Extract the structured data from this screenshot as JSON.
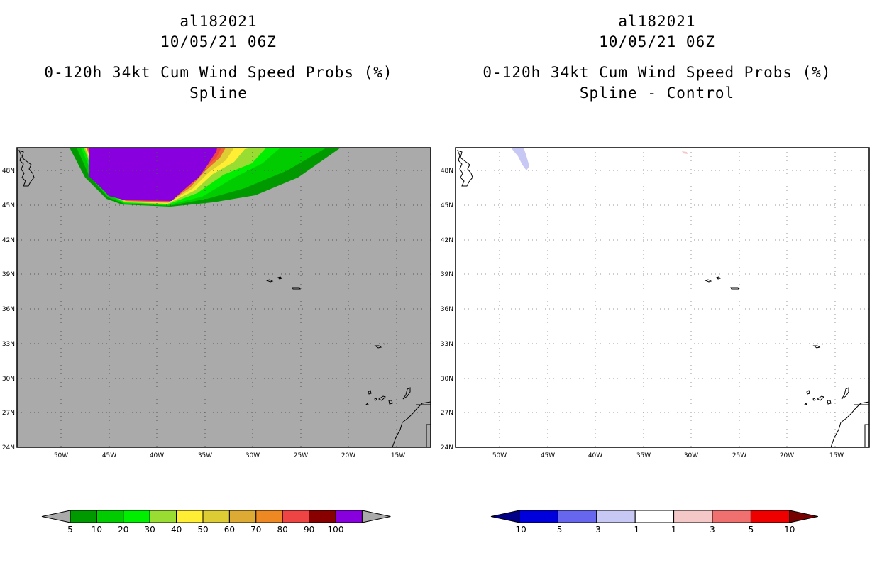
{
  "panels": [
    {
      "title_lines": [
        "al182021",
        "10/05/21 06Z",
        "0-120h 34kt Cum Wind Speed Probs (%)",
        "Spline"
      ],
      "background": "#aaaaaa",
      "colorbar": {
        "colors": [
          "#009900",
          "#00cc00",
          "#00ee00",
          "#99dd33",
          "#ffee33",
          "#ddcc33",
          "#ddaa33",
          "#ee8822",
          "#ee4444",
          "#880000",
          "#8800dd"
        ],
        "labels": [
          "5",
          "10",
          "20",
          "30",
          "40",
          "50",
          "60",
          "70",
          "80",
          "90",
          "100"
        ],
        "under_color": "#aaaaaa",
        "over_color": "#aaaaaa"
      }
    },
    {
      "title_lines": [
        "al182021",
        "10/05/21 06Z",
        "0-120h 34kt Cum Wind Speed Probs (%)",
        "Spline - Control"
      ],
      "background": "#ffffff",
      "colorbar": {
        "colors": [
          "#0000dd",
          "#6666ee",
          "#c8c8f5",
          "#ffffff",
          "#f5c8c8",
          "#f07070",
          "#ee0000"
        ],
        "labels": [
          "-10",
          "-5",
          "-3",
          "-1",
          "1",
          "3",
          "5",
          "10"
        ],
        "under_color": "#000088",
        "over_color": "#770000"
      }
    }
  ],
  "axes": {
    "lon_labels": [
      "50W",
      "45W",
      "40W",
      "35W",
      "30W",
      "25W",
      "20W",
      "15W"
    ],
    "lat_labels": [
      "48N",
      "45N",
      "42N",
      "39N",
      "36N",
      "33N",
      "30N",
      "27N",
      "24N"
    ]
  }
}
